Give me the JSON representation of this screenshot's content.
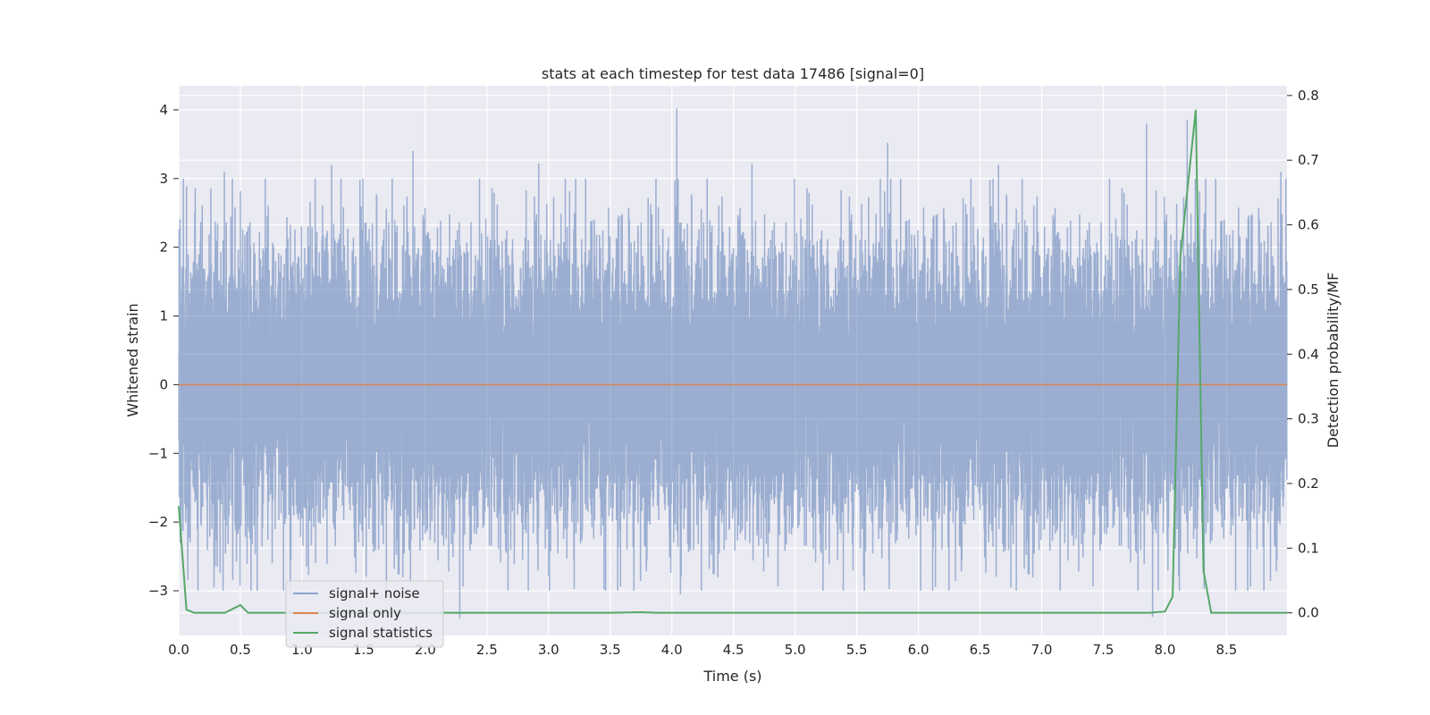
{
  "chart_data": {
    "type": "line",
    "title": "stats at each timestep for test data 17486 [signal=0]",
    "xlabel": "Time (s)",
    "ylabel": "Whitened strain",
    "y2label": "Detection probability/MF",
    "xlim": [
      0.0,
      8.99
    ],
    "ylim": [
      -3.65,
      4.35
    ],
    "y2lim": [
      -0.035,
      0.815
    ],
    "xticks": [
      "0.0",
      "0.5",
      "1.0",
      "1.5",
      "2.0",
      "2.5",
      "3.0",
      "3.5",
      "4.0",
      "4.5",
      "5.0",
      "5.5",
      "6.0",
      "6.5",
      "7.0",
      "7.5",
      "8.0",
      "8.5"
    ],
    "yticks": [
      "−3",
      "−2",
      "−1",
      "0",
      "1",
      "2",
      "3",
      "4"
    ],
    "y2ticks": [
      "0.0",
      "0.1",
      "0.2",
      "0.3",
      "0.4",
      "0.5",
      "0.6",
      "0.7",
      "0.8"
    ],
    "grid": true,
    "legend_position": "lower-left",
    "series": [
      {
        "name": "signal+ noise",
        "color": "#4c72b0",
        "axis": "left",
        "kind": "noise",
        "sample_rate_hz": 2048,
        "std": 1.0,
        "peaks": [
          {
            "x": 4.04,
            "y": 4.02
          },
          {
            "x": 1.9,
            "y": 3.4
          },
          {
            "x": 8.18,
            "y": 3.85
          },
          {
            "x": 7.85,
            "y": 3.8
          },
          {
            "x": 5.75,
            "y": 3.52
          },
          {
            "x": 7.15,
            "y": 3.65
          },
          {
            "x": 0.5,
            "y": 2.82
          },
          {
            "x": 0.37,
            "y": 3.1
          },
          {
            "x": 1.24,
            "y": 3.2
          },
          {
            "x": 2.92,
            "y": 3.22
          },
          {
            "x": 4.65,
            "y": 3.22
          },
          {
            "x": 6.65,
            "y": 3.2
          },
          {
            "x": 8.94,
            "y": 3.1
          },
          {
            "x": 2.28,
            "y": -3.4
          },
          {
            "x": 7.9,
            "y": -3.38
          },
          {
            "x": 4.07,
            "y": -3.05
          },
          {
            "x": 3.45,
            "y": -2.98
          },
          {
            "x": 7.15,
            "y": -3.0
          },
          {
            "x": 1.88,
            "y": -2.85
          },
          {
            "x": 6.75,
            "y": -2.95
          }
        ]
      },
      {
        "name": "signal only",
        "color": "#dd8452",
        "axis": "left",
        "x": [
          0.0,
          8.99
        ],
        "y": [
          0.0,
          0.0
        ]
      },
      {
        "name": "signal statistics",
        "color": "#55a868",
        "axis": "right",
        "x": [
          0.0,
          0.0625,
          0.125,
          0.25,
          0.375,
          0.5,
          0.5625,
          0.625,
          1.0,
          2.0,
          3.0,
          3.5,
          3.75,
          3.875,
          4.0,
          5.0,
          6.0,
          7.0,
          7.5,
          7.875,
          8.0,
          8.0625,
          8.125,
          8.25,
          8.3125,
          8.375,
          8.5,
          8.99
        ],
        "y": [
          0.165,
          0.005,
          0.0,
          0.0,
          0.0,
          0.012,
          0.0,
          0.0,
          0.0,
          0.0,
          0.0,
          0.0,
          0.001,
          0.0,
          0.0,
          0.0,
          0.0,
          0.0,
          0.0,
          0.0,
          0.002,
          0.025,
          0.55,
          0.778,
          0.065,
          0.0,
          0.0,
          0.0
        ]
      }
    ]
  }
}
